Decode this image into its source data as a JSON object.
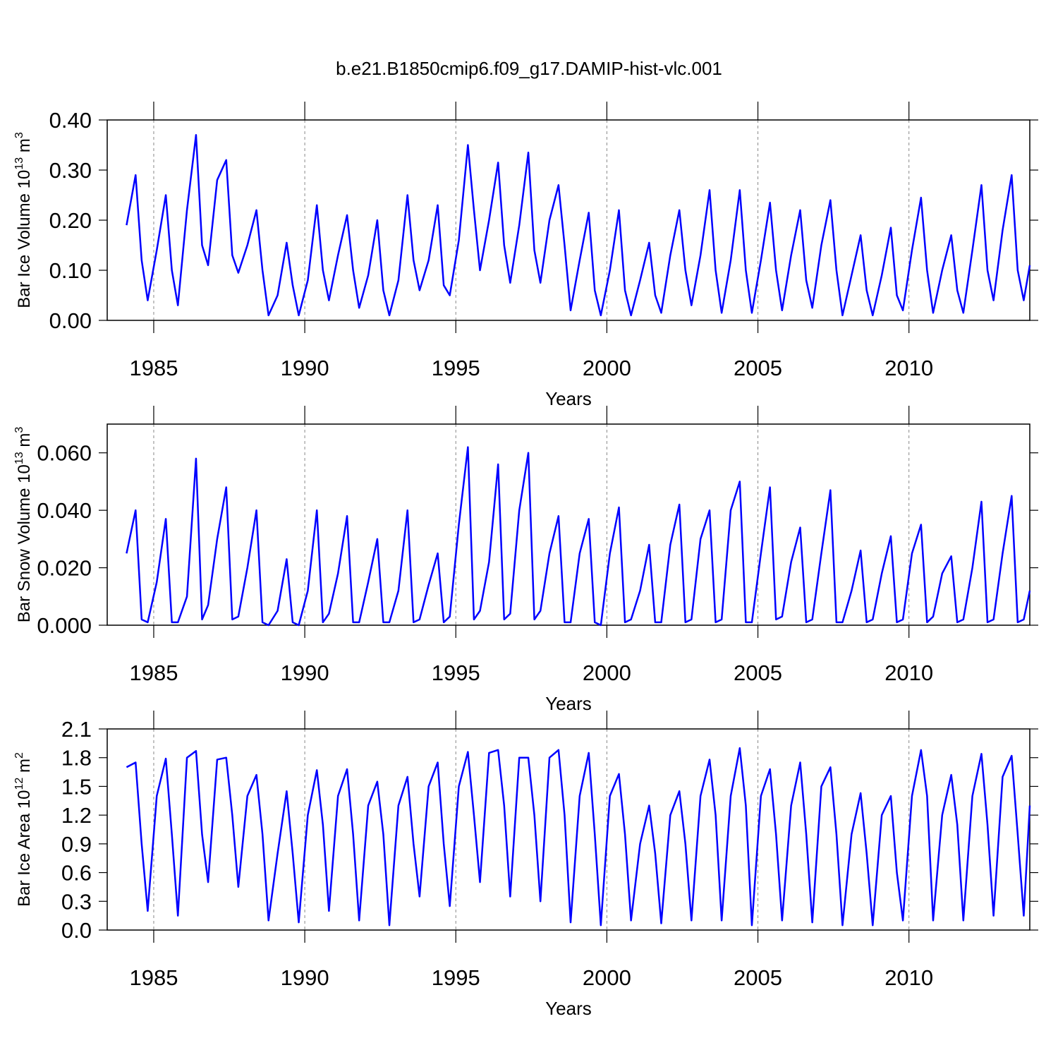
{
  "chart_data": [
    {
      "type": "line",
      "title": "b.e21.B1850cmip6.f09_g17.DAMIP-hist-vlc.001",
      "ylabel": "Bar Ice Volume 10",
      "ylabel_exponent": "13",
      "ylabel_unit": "m",
      "ylabel_unit_exponent": "3",
      "xlabel": "Years",
      "color": "#0000ff",
      "grid": "dashed-x",
      "xlim": [
        1983.46,
        2014.0
      ],
      "xticks": [
        1985,
        1990,
        1995,
        2000,
        2005,
        2010
      ],
      "ylim": [
        0,
        0.4
      ],
      "yticks": [
        {
          "value": 0,
          "label": "0.00"
        },
        {
          "value": 0.1,
          "label": "0.10"
        },
        {
          "value": 0.2,
          "label": "0.20"
        },
        {
          "value": 0.3,
          "label": "0.30"
        },
        {
          "value": 0.4,
          "label": "0.40"
        }
      ],
      "x": [
        1984.1,
        1984.4,
        1984.6,
        1984.8,
        1985.1,
        1985.4,
        1985.6,
        1985.8,
        1986.1,
        1986.4,
        1986.6,
        1986.8,
        1987.1,
        1987.4,
        1987.6,
        1987.8,
        1988.1,
        1988.4,
        1988.6,
        1988.8,
        1989.1,
        1989.4,
        1989.6,
        1989.8,
        1990.1,
        1990.4,
        1990.6,
        1990.8,
        1991.1,
        1991.4,
        1991.6,
        1991.8,
        1992.1,
        1992.4,
        1992.6,
        1992.8,
        1993.1,
        1993.4,
        1993.6,
        1993.8,
        1994.1,
        1994.4,
        1994.6,
        1994.8,
        1995.1,
        1995.4,
        1995.6,
        1995.8,
        1996.1,
        1996.4,
        1996.6,
        1996.8,
        1997.1,
        1997.4,
        1997.6,
        1997.8,
        1998.1,
        1998.4,
        1998.6,
        1998.8,
        1999.1,
        1999.4,
        1999.6,
        1999.8,
        2000.1,
        2000.4,
        2000.6,
        2000.8,
        2001.1,
        2001.4,
        2001.6,
        2001.8,
        2002.1,
        2002.4,
        2002.6,
        2002.8,
        2003.1,
        2003.4,
        2003.6,
        2003.8,
        2004.1,
        2004.4,
        2004.6,
        2004.8,
        2005.1,
        2005.4,
        2005.6,
        2005.8,
        2006.1,
        2006.4,
        2006.6,
        2006.8,
        2007.1,
        2007.4,
        2007.6,
        2007.8,
        2008.1,
        2008.4,
        2008.6,
        2008.8,
        2009.1,
        2009.4,
        2009.6,
        2009.8,
        2010.1,
        2010.4,
        2010.6,
        2010.8,
        2011.1,
        2011.4,
        2011.6,
        2011.8,
        2012.1,
        2012.4,
        2012.6,
        2012.8,
        2013.1,
        2013.4,
        2013.6,
        2013.8,
        2014.0
      ],
      "values": [
        0.19,
        0.29,
        0.12,
        0.04,
        0.14,
        0.25,
        0.1,
        0.03,
        0.22,
        0.37,
        0.15,
        0.11,
        0.28,
        0.32,
        0.13,
        0.095,
        0.15,
        0.22,
        0.1,
        0.01,
        0.05,
        0.155,
        0.07,
        0.01,
        0.08,
        0.23,
        0.1,
        0.04,
        0.13,
        0.21,
        0.1,
        0.025,
        0.09,
        0.2,
        0.06,
        0.01,
        0.08,
        0.25,
        0.12,
        0.06,
        0.12,
        0.23,
        0.07,
        0.05,
        0.16,
        0.35,
        0.22,
        0.1,
        0.2,
        0.315,
        0.15,
        0.075,
        0.19,
        0.335,
        0.14,
        0.075,
        0.2,
        0.27,
        0.15,
        0.02,
        0.12,
        0.215,
        0.06,
        0.01,
        0.1,
        0.22,
        0.06,
        0.01,
        0.08,
        0.155,
        0.05,
        0.015,
        0.13,
        0.22,
        0.1,
        0.03,
        0.13,
        0.26,
        0.1,
        0.015,
        0.12,
        0.26,
        0.1,
        0.015,
        0.12,
        0.235,
        0.1,
        0.02,
        0.13,
        0.22,
        0.08,
        0.025,
        0.15,
        0.24,
        0.1,
        0.01,
        0.09,
        0.17,
        0.06,
        0.01,
        0.09,
        0.185,
        0.05,
        0.02,
        0.14,
        0.245,
        0.1,
        0.015,
        0.1,
        0.17,
        0.06,
        0.015,
        0.14,
        0.27,
        0.1,
        0.04,
        0.18,
        0.29,
        0.1,
        0.04,
        0.11
      ]
    },
    {
      "type": "line",
      "ylabel": "Bar Snow Volume 10",
      "ylabel_exponent": "13",
      "ylabel_unit": "m",
      "ylabel_unit_exponent": "3",
      "xlabel": "Years",
      "color": "#0000ff",
      "grid": "dashed-x",
      "xlim": [
        1983.46,
        2014.0
      ],
      "xticks": [
        1985,
        1990,
        1995,
        2000,
        2005,
        2010
      ],
      "ylim": [
        0,
        0.07
      ],
      "yticks": [
        {
          "value": 0,
          "label": "0.000"
        },
        {
          "value": 0.02,
          "label": "0.020"
        },
        {
          "value": 0.04,
          "label": "0.040"
        },
        {
          "value": 0.06,
          "label": "0.060"
        }
      ],
      "x": [
        1984.1,
        1984.4,
        1984.6,
        1984.8,
        1985.1,
        1985.4,
        1985.6,
        1985.8,
        1986.1,
        1986.4,
        1986.6,
        1986.8,
        1987.1,
        1987.4,
        1987.6,
        1987.8,
        1988.1,
        1988.4,
        1988.6,
        1988.8,
        1989.1,
        1989.4,
        1989.6,
        1989.8,
        1990.1,
        1990.4,
        1990.6,
        1990.8,
        1991.1,
        1991.4,
        1991.6,
        1991.8,
        1992.1,
        1992.4,
        1992.6,
        1992.8,
        1993.1,
        1993.4,
        1993.6,
        1993.8,
        1994.1,
        1994.4,
        1994.6,
        1994.8,
        1995.1,
        1995.4,
        1995.6,
        1995.8,
        1996.1,
        1996.4,
        1996.6,
        1996.8,
        1997.1,
        1997.4,
        1997.6,
        1997.8,
        1998.1,
        1998.4,
        1998.6,
        1998.8,
        1999.1,
        1999.4,
        1999.6,
        1999.8,
        2000.1,
        2000.4,
        2000.6,
        2000.8,
        2001.1,
        2001.4,
        2001.6,
        2001.8,
        2002.1,
        2002.4,
        2002.6,
        2002.8,
        2003.1,
        2003.4,
        2003.6,
        2003.8,
        2004.1,
        2004.4,
        2004.6,
        2004.8,
        2005.1,
        2005.4,
        2005.6,
        2005.8,
        2006.1,
        2006.4,
        2006.6,
        2006.8,
        2007.1,
        2007.4,
        2007.6,
        2007.8,
        2008.1,
        2008.4,
        2008.6,
        2008.8,
        2009.1,
        2009.4,
        2009.6,
        2009.8,
        2010.1,
        2010.4,
        2010.6,
        2010.8,
        2011.1,
        2011.4,
        2011.6,
        2011.8,
        2012.1,
        2012.4,
        2012.6,
        2012.8,
        2013.1,
        2013.4,
        2013.6,
        2013.8,
        2014.0
      ],
      "values": [
        0.025,
        0.04,
        0.002,
        0.001,
        0.015,
        0.037,
        0.001,
        0.001,
        0.01,
        0.058,
        0.002,
        0.007,
        0.03,
        0.048,
        0.002,
        0.003,
        0.02,
        0.04,
        0.001,
        0.0,
        0.005,
        0.023,
        0.001,
        0.0,
        0.012,
        0.04,
        0.001,
        0.004,
        0.018,
        0.038,
        0.001,
        0.001,
        0.015,
        0.03,
        0.001,
        0.001,
        0.012,
        0.04,
        0.001,
        0.002,
        0.014,
        0.025,
        0.001,
        0.003,
        0.035,
        0.062,
        0.002,
        0.005,
        0.022,
        0.056,
        0.002,
        0.004,
        0.04,
        0.06,
        0.002,
        0.005,
        0.025,
        0.038,
        0.001,
        0.001,
        0.025,
        0.037,
        0.001,
        0.0,
        0.025,
        0.041,
        0.001,
        0.002,
        0.012,
        0.028,
        0.001,
        0.001,
        0.028,
        0.042,
        0.001,
        0.002,
        0.03,
        0.04,
        0.001,
        0.002,
        0.04,
        0.05,
        0.001,
        0.001,
        0.025,
        0.048,
        0.002,
        0.003,
        0.022,
        0.034,
        0.001,
        0.002,
        0.025,
        0.047,
        0.001,
        0.001,
        0.012,
        0.026,
        0.001,
        0.002,
        0.018,
        0.031,
        0.001,
        0.002,
        0.025,
        0.035,
        0.001,
        0.003,
        0.018,
        0.024,
        0.001,
        0.002,
        0.02,
        0.043,
        0.001,
        0.002,
        0.025,
        0.045,
        0.001,
        0.002,
        0.012
      ]
    },
    {
      "type": "line",
      "ylabel": "Bar Ice Area 10",
      "ylabel_exponent": "12",
      "ylabel_unit": "m",
      "ylabel_unit_exponent": "2",
      "xlabel": "Years",
      "color": "#0000ff",
      "grid": "dashed-x",
      "xlim": [
        1983.46,
        2014.0
      ],
      "xticks": [
        1985,
        1990,
        1995,
        2000,
        2005,
        2010
      ],
      "ylim": [
        0,
        2.1
      ],
      "yticks": [
        {
          "value": 0,
          "label": "0.0"
        },
        0.3,
        0.6,
        0.9,
        1.2,
        1.5,
        1.8,
        2.1
      ],
      "x": [
        1984.1,
        1984.4,
        1984.6,
        1984.8,
        1985.1,
        1985.4,
        1985.6,
        1985.8,
        1986.1,
        1986.4,
        1986.6,
        1986.8,
        1987.1,
        1987.4,
        1987.6,
        1987.8,
        1988.1,
        1988.4,
        1988.6,
        1988.8,
        1989.1,
        1989.4,
        1989.6,
        1989.8,
        1990.1,
        1990.4,
        1990.6,
        1990.8,
        1991.1,
        1991.4,
        1991.6,
        1991.8,
        1992.1,
        1992.4,
        1992.6,
        1992.8,
        1993.1,
        1993.4,
        1993.6,
        1993.8,
        1994.1,
        1994.4,
        1994.6,
        1994.8,
        1995.1,
        1995.4,
        1995.6,
        1995.8,
        1996.1,
        1996.4,
        1996.6,
        1996.8,
        1997.1,
        1997.4,
        1997.6,
        1997.8,
        1998.1,
        1998.4,
        1998.6,
        1998.8,
        1999.1,
        1999.4,
        1999.6,
        1999.8,
        2000.1,
        2000.4,
        2000.6,
        2000.8,
        2001.1,
        2001.4,
        2001.6,
        2001.8,
        2002.1,
        2002.4,
        2002.6,
        2002.8,
        2003.1,
        2003.4,
        2003.6,
        2003.8,
        2004.1,
        2004.4,
        2004.6,
        2004.8,
        2005.1,
        2005.4,
        2005.6,
        2005.8,
        2006.1,
        2006.4,
        2006.6,
        2006.8,
        2007.1,
        2007.4,
        2007.6,
        2007.8,
        2008.1,
        2008.4,
        2008.6,
        2008.8,
        2009.1,
        2009.4,
        2009.6,
        2009.8,
        2010.1,
        2010.4,
        2010.6,
        2010.8,
        2011.1,
        2011.4,
        2011.6,
        2011.8,
        2012.1,
        2012.4,
        2012.6,
        2012.8,
        2013.1,
        2013.4,
        2013.6,
        2013.8,
        2014.0
      ],
      "values": [
        1.7,
        1.75,
        0.9,
        0.2,
        1.4,
        1.79,
        1.0,
        0.15,
        1.8,
        1.87,
        1.0,
        0.5,
        1.78,
        1.8,
        1.2,
        0.45,
        1.4,
        1.62,
        1.0,
        0.1,
        0.8,
        1.45,
        0.8,
        0.08,
        1.2,
        1.67,
        1.1,
        0.2,
        1.4,
        1.68,
        1.0,
        0.1,
        1.3,
        1.55,
        1.0,
        0.05,
        1.3,
        1.6,
        0.9,
        0.35,
        1.5,
        1.75,
        0.9,
        0.25,
        1.5,
        1.86,
        1.2,
        0.5,
        1.85,
        1.88,
        1.3,
        0.35,
        1.8,
        1.8,
        1.2,
        0.3,
        1.8,
        1.88,
        1.2,
        0.08,
        1.4,
        1.85,
        1.0,
        0.05,
        1.4,
        1.63,
        1.0,
        0.1,
        0.9,
        1.3,
        0.8,
        0.07,
        1.2,
        1.45,
        0.9,
        0.1,
        1.4,
        1.78,
        1.2,
        0.1,
        1.4,
        1.9,
        1.3,
        0.05,
        1.4,
        1.68,
        1.0,
        0.1,
        1.3,
        1.75,
        1.0,
        0.08,
        1.5,
        1.7,
        1.0,
        0.05,
        1.0,
        1.43,
        0.8,
        0.05,
        1.2,
        1.4,
        0.6,
        0.1,
        1.4,
        1.88,
        1.4,
        0.1,
        1.2,
        1.62,
        1.1,
        0.1,
        1.4,
        1.84,
        1.1,
        0.15,
        1.6,
        1.82,
        1.0,
        0.15,
        1.3
      ]
    }
  ]
}
